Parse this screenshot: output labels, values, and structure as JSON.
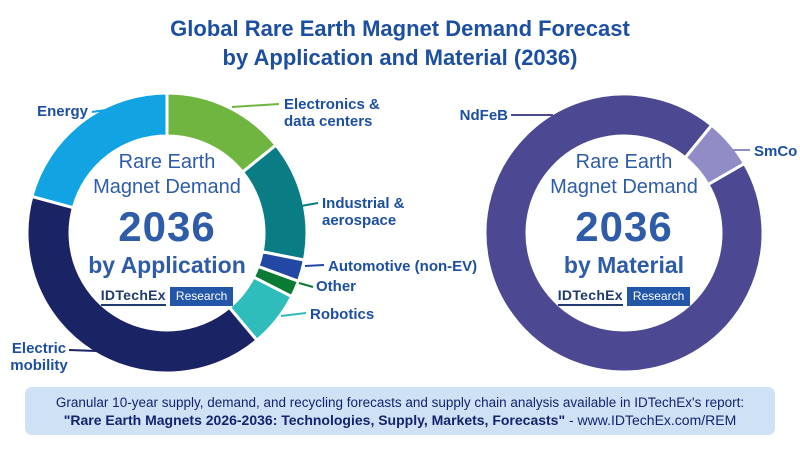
{
  "title": {
    "line1": "Global Rare Earth Magnet Demand Forecast",
    "line2": "by Application and Material (2036)"
  },
  "logo": {
    "brand": "IDTechEx",
    "suffix": "Research"
  },
  "footer": {
    "line1": "Granular 10-year supply, demand, and recycling forecasts and supply chain analysis available in IDTechEx's report:",
    "line2_bold": "\"Rare Earth Magnets 2026-2036: Technologies, Supply, Markets, Forecasts\"",
    "line2_regular": " - www.IDTechEx.com/REM"
  },
  "colors": {
    "title_text": "#1D4FA1",
    "label_text": "#1D4FA1",
    "center_text": "#2E5CA8",
    "footer_bg": "#CFE1F5",
    "footer_text": "#13246E",
    "logo_box_bg": "#2456A8",
    "logo_brand_text": "#1E3A6E",
    "background": "#FFFFFF"
  },
  "chart_data": [
    {
      "type": "pie",
      "shape": "donut",
      "title": "Rare Earth Magnet Demand 2036 by Application",
      "center_line1": "Rare Earth",
      "center_line2": "Magnet Demand",
      "year": "2036",
      "subtitle": "by Application",
      "start_angle_deg": 0,
      "legend_position": "outside-callouts",
      "slices": [
        {
          "label": "Electronics & data centers",
          "value_pct": 14.2,
          "color": "#6FB53F"
        },
        {
          "label": "Industrial & aerospace",
          "value_pct": 13.9,
          "color": "#0A7C84"
        },
        {
          "label": "Automotive (non-EV)",
          "value_pct": 2.5,
          "color": "#2348A4"
        },
        {
          "label": "Other",
          "value_pct": 1.9,
          "color": "#0A7A34"
        },
        {
          "label": "Robotics",
          "value_pct": 6.4,
          "color": "#2FBDBB"
        },
        {
          "label": "Electric mobility",
          "value_pct": 40.3,
          "color": "#1A2465"
        },
        {
          "label": "Energy",
          "value_pct": 20.8,
          "color": "#12A3E2"
        }
      ]
    },
    {
      "type": "pie",
      "shape": "donut",
      "title": "Rare Earth Magnet Demand 2036 by Material",
      "center_line1": "Rare Earth",
      "center_line2": "Magnet Demand",
      "year": "2036",
      "subtitle": "by Material",
      "start_angle_deg": 60,
      "legend_position": "outside-callouts",
      "slices": [
        {
          "label": "NdFeB",
          "value_pct": 94.2,
          "color": "#4C4892"
        },
        {
          "label": "SmCo",
          "value_pct": 5.8,
          "color": "#8F8CC6"
        }
      ]
    }
  ]
}
